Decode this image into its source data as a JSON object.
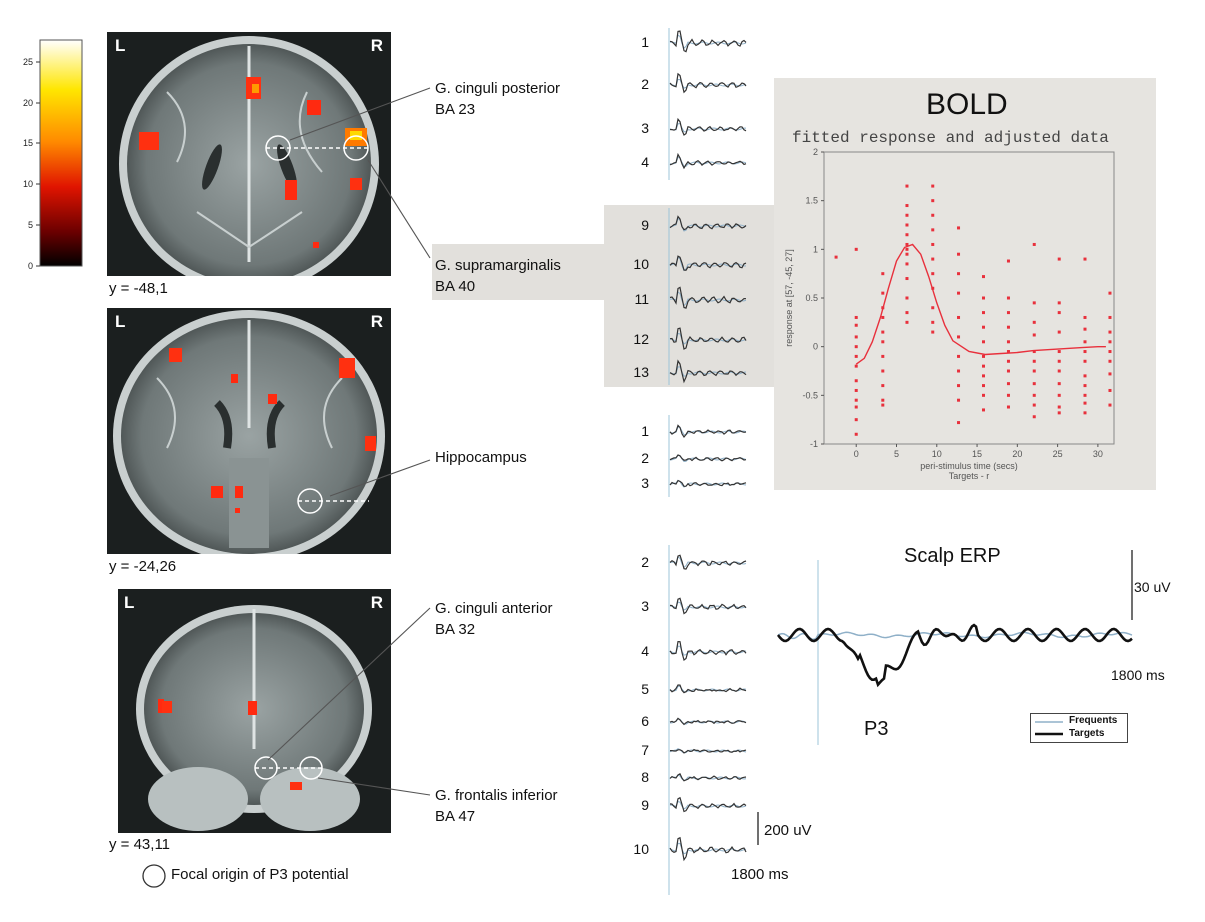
{
  "colorbar": {
    "ticks": [
      "25",
      "20",
      "15",
      "10",
      "5",
      "0"
    ],
    "colors": [
      "#ffffff",
      "#ffe600",
      "#ff7a00",
      "#e01000",
      "#5a0000",
      "#000000"
    ]
  },
  "slices": [
    {
      "coord": "y = -48,1",
      "left": "L",
      "right": "R"
    },
    {
      "coord": "y = -24,26",
      "left": "L",
      "right": "R"
    },
    {
      "coord": "y = 43,11",
      "left": "L",
      "right": "R"
    }
  ],
  "regions": {
    "cingulate_posterior": [
      "G. cinguli posterior",
      "BA 23"
    ],
    "supramarginal": [
      "G. supramarginalis",
      "BA 40"
    ],
    "hippocampus": [
      "Hippocampus"
    ],
    "cingulate_anterior": [
      "G. cinguli anterior",
      "BA 32"
    ],
    "frontal_inferior": [
      "G. frontalis inferior",
      "BA 47"
    ]
  },
  "legend_focal": "Focal origin of P3 potential",
  "channels": {
    "group1": [
      "1",
      "2",
      "3",
      "4"
    ],
    "group2": [
      "9",
      "10",
      "11",
      "12",
      "13"
    ],
    "group3": [
      "1",
      "2",
      "3"
    ],
    "group4": [
      "2",
      "3",
      "4",
      "5",
      "6",
      "7",
      "8",
      "9",
      "10"
    ]
  },
  "scalebar_channels": {
    "amplitude": "200 uV",
    "time": "1800 ms"
  },
  "bold": {
    "title": "BOLD",
    "subtitle": "fitted response and adjusted data",
    "ylabel": "response at [57, -45, 27]",
    "xlabel": "peri-stimulus time (secs)",
    "xlabel2": "Targets - r"
  },
  "chart_data": {
    "type": "scatter",
    "title": "fitted response and adjusted data",
    "xlabel": "peri-stimulus time (secs)",
    "ylabel": "response at [57, -45, 27]",
    "xlim": [
      -4,
      32
    ],
    "ylim": [
      -1,
      2
    ],
    "xticks": [
      0,
      5,
      10,
      15,
      20,
      25,
      30
    ],
    "yticks": [
      -1,
      -0.5,
      0,
      0.5,
      1,
      1.5,
      2
    ],
    "color": "#e8303c",
    "fitted_curve": {
      "x": [
        0,
        1,
        2,
        3,
        4,
        5,
        6,
        7,
        8,
        9,
        10,
        11,
        12,
        14,
        16,
        18,
        20,
        22,
        24,
        26,
        28,
        30,
        31
      ],
      "y": [
        -0.18,
        -0.12,
        0.05,
        0.3,
        0.6,
        0.88,
        1.02,
        1.05,
        0.95,
        0.72,
        0.45,
        0.22,
        0.06,
        -0.05,
        -0.08,
        -0.07,
        -0.06,
        -0.04,
        -0.03,
        -0.02,
        -0.01,
        0.0,
        0.0
      ]
    },
    "points": [
      {
        "x": 0,
        "y": [
          0.3,
          0.22,
          0.1,
          0.0,
          -0.1,
          -0.2,
          -0.35,
          -0.45,
          -0.55,
          -0.62,
          -0.75,
          -0.9,
          1.0
        ]
      },
      {
        "x": 3.3,
        "y": [
          0.75,
          0.55,
          0.4,
          0.3,
          0.15,
          0.05,
          -0.1,
          -0.25,
          -0.4,
          -0.55,
          -0.6
        ]
      },
      {
        "x": 6.3,
        "y": [
          1.65,
          1.45,
          1.35,
          1.25,
          1.15,
          1.05,
          1.0,
          0.95,
          0.85,
          0.7,
          0.5,
          0.35,
          0.25
        ]
      },
      {
        "x": 9.5,
        "y": [
          1.65,
          1.5,
          1.35,
          1.2,
          1.05,
          0.9,
          0.75,
          0.6,
          0.4,
          0.25,
          0.15
        ]
      },
      {
        "x": 12.7,
        "y": [
          1.22,
          0.95,
          0.75,
          0.55,
          0.3,
          0.1,
          -0.1,
          -0.25,
          -0.4,
          -0.55,
          -0.78
        ]
      },
      {
        "x": 15.8,
        "y": [
          0.72,
          0.5,
          0.35,
          0.2,
          0.05,
          -0.1,
          -0.2,
          -0.3,
          -0.4,
          -0.5,
          -0.65
        ]
      },
      {
        "x": 18.9,
        "y": [
          0.88,
          0.5,
          0.35,
          0.2,
          0.05,
          -0.05,
          -0.15,
          -0.25,
          -0.38,
          -0.5,
          -0.62
        ]
      },
      {
        "x": 22.1,
        "y": [
          1.05,
          0.45,
          0.25,
          0.12,
          -0.05,
          -0.15,
          -0.25,
          -0.38,
          -0.5,
          -0.6,
          -0.72
        ]
      },
      {
        "x": 25.2,
        "y": [
          0.9,
          0.45,
          0.35,
          0.15,
          -0.05,
          -0.15,
          -0.25,
          -0.38,
          -0.5,
          -0.62,
          -0.68
        ]
      },
      {
        "x": 28.4,
        "y": [
          0.9,
          0.3,
          0.18,
          0.05,
          -0.05,
          -0.15,
          -0.3,
          -0.4,
          -0.5,
          -0.58,
          -0.68
        ]
      },
      {
        "x": 31.5,
        "y": [
          0.55,
          0.3,
          0.15,
          0.05,
          -0.05,
          -0.15,
          -0.28,
          -0.45,
          -0.6
        ]
      }
    ]
  },
  "erp": {
    "title": "Scalp ERP",
    "amplitude": "30 uV",
    "time": "1800 ms",
    "peak_label": "P3",
    "legend": [
      {
        "name": "Frequents",
        "color": "#8fb0c8"
      },
      {
        "name": "Targets",
        "color": "#111111"
      }
    ]
  }
}
